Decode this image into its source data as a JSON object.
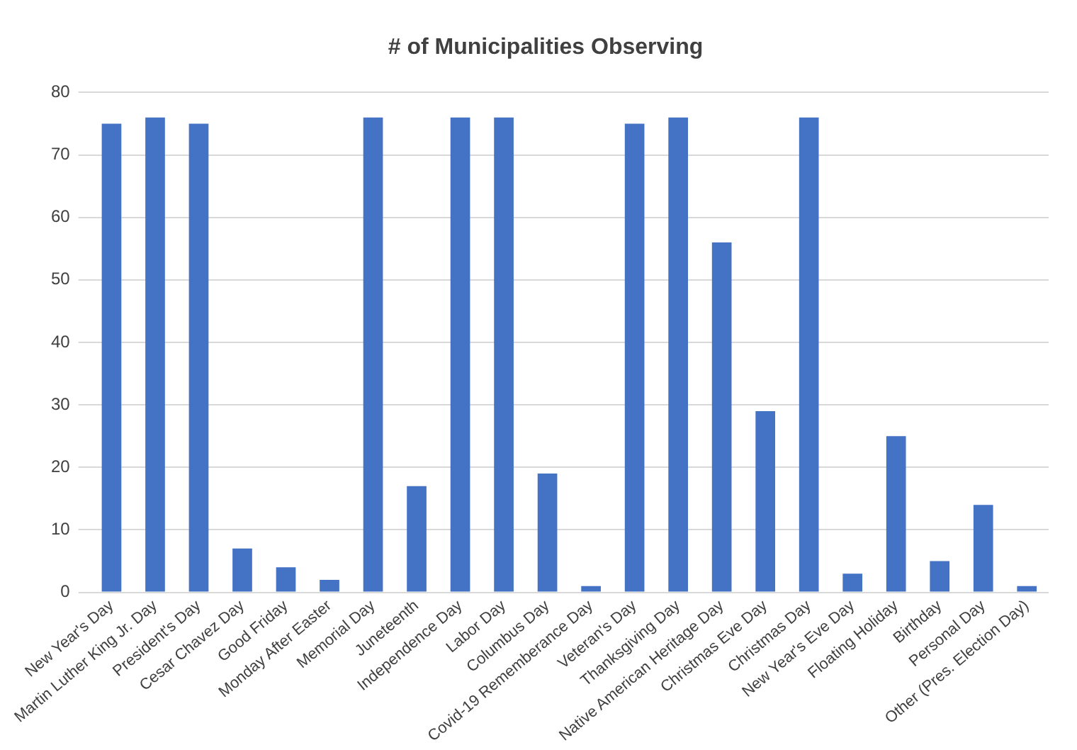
{
  "chart_data": {
    "type": "bar",
    "title": "# of Municipalities Observing",
    "categories": [
      "New Year's Day",
      "Martin Luther King Jr. Day",
      "President's Day",
      "Cesar Chavez Day",
      "Good Friday",
      "Monday After Easter",
      "Memorial Day",
      "Juneteenth",
      "Independence Day",
      "Labor Day",
      "Columbus Day",
      "Covid-19 Rememberance Day",
      "Veteran's Day",
      "Thanksgiving Day",
      "Native American Heritage Day",
      "Christmas Eve Day",
      "Christmas Day",
      "New Year's Eve Day",
      "Floating Holiday",
      "Birthday",
      "Personal Day",
      "Other (Pres. Election Day)"
    ],
    "values": [
      75,
      76,
      75,
      7,
      4,
      2,
      76,
      17,
      76,
      76,
      19,
      1,
      75,
      76,
      56,
      29,
      76,
      3,
      25,
      5,
      14,
      1
    ],
    "color": "#4472c4",
    "ylim": [
      0,
      80
    ],
    "yticks": [
      0,
      10,
      20,
      30,
      40,
      50,
      60,
      70,
      80
    ],
    "grid": "y"
  }
}
